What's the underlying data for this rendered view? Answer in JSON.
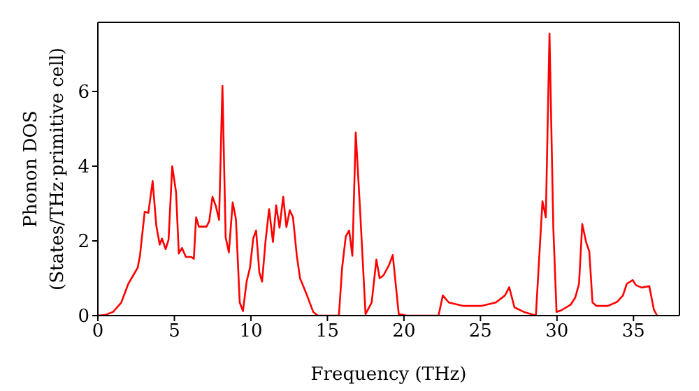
{
  "chart_data": {
    "type": "line",
    "xlabel": "Frequency (THz)",
    "ylabel": "Phonon DOS\n(States/THz·primitive cell)",
    "x": [
      0,
      0.5,
      1,
      1.53,
      1.99,
      2.6,
      2.75,
      3.06,
      3.3,
      3.58,
      3.82,
      4.04,
      4.19,
      4.43,
      4.62,
      4.86,
      5.11,
      5.29,
      5.5,
      5.75,
      6.1,
      6.27,
      6.42,
      6.6,
      7.1,
      7.28,
      7.49,
      7.71,
      7.92,
      8.14,
      8.35,
      8.56,
      8.81,
      9.02,
      9.27,
      9.48,
      9.72,
      9.94,
      10.15,
      10.34,
      10.55,
      10.73,
      10.95,
      11.19,
      11.44,
      11.65,
      11.87,
      12.11,
      12.32,
      12.54,
      12.75,
      13.0,
      13.21,
      13.61,
      14.07,
      14.37,
      15.75,
      15.96,
      16.2,
      16.42,
      16.63,
      16.85,
      17.13,
      17.49,
      17.89,
      18.2,
      18.41,
      18.65,
      19.02,
      19.27,
      19.66,
      20.18,
      22.26,
      22.54,
      22.93,
      23.85,
      25.08,
      26.0,
      26.6,
      26.88,
      27.22,
      27.83,
      28.62,
      29.05,
      29.27,
      29.51,
      29.76,
      29.97,
      30.28,
      30.89,
      31.19,
      31.44,
      31.65,
      31.9,
      32.11,
      32.32,
      32.57,
      33.33,
      33.94,
      34.31,
      34.56,
      34.95,
      35.17,
      35.54,
      36.03,
      36.33,
      36.54
    ],
    "series": [
      {
        "color": "#ff0000",
        "values": [
          0,
          0.02,
          0.1,
          0.35,
          0.85,
          1.28,
          1.6,
          2.78,
          2.75,
          3.6,
          2.4,
          1.9,
          2.06,
          1.78,
          2.03,
          4.0,
          3.3,
          1.66,
          1.81,
          1.57,
          1.57,
          1.52,
          2.63,
          2.38,
          2.38,
          2.53,
          3.18,
          2.93,
          2.56,
          6.15,
          2.1,
          1.69,
          3.03,
          2.59,
          0.35,
          0.12,
          0.91,
          1.28,
          2.06,
          2.28,
          1.16,
          0.91,
          1.97,
          2.85,
          1.97,
          2.95,
          2.35,
          3.18,
          2.37,
          2.82,
          2.63,
          1.6,
          1.0,
          0.6,
          0.1,
          0,
          0,
          1.28,
          2.12,
          2.28,
          1.6,
          4.9,
          2.85,
          0.04,
          0.35,
          1.5,
          1.0,
          1.07,
          1.35,
          1.62,
          0.04,
          0,
          0,
          0.54,
          0.35,
          0.26,
          0.26,
          0.35,
          0.54,
          0.76,
          0.22,
          0.1,
          0,
          3.06,
          2.63,
          7.55,
          2.35,
          0.1,
          0.14,
          0.29,
          0.48,
          0.85,
          2.45,
          1.97,
          1.72,
          0.35,
          0.26,
          0.26,
          0.37,
          0.54,
          0.85,
          0.95,
          0.81,
          0.75,
          0.79,
          0.16,
          0
        ]
      }
    ],
    "xlim": [
      0,
      38
    ],
    "xticks": [
      0,
      5,
      10,
      15,
      20,
      25,
      30,
      35
    ],
    "ylim": [
      0,
      7.85
    ],
    "yticks": [
      0,
      2,
      4,
      6
    ],
    "grid": false,
    "legend": false,
    "marker": "none",
    "line_style": "solid"
  }
}
